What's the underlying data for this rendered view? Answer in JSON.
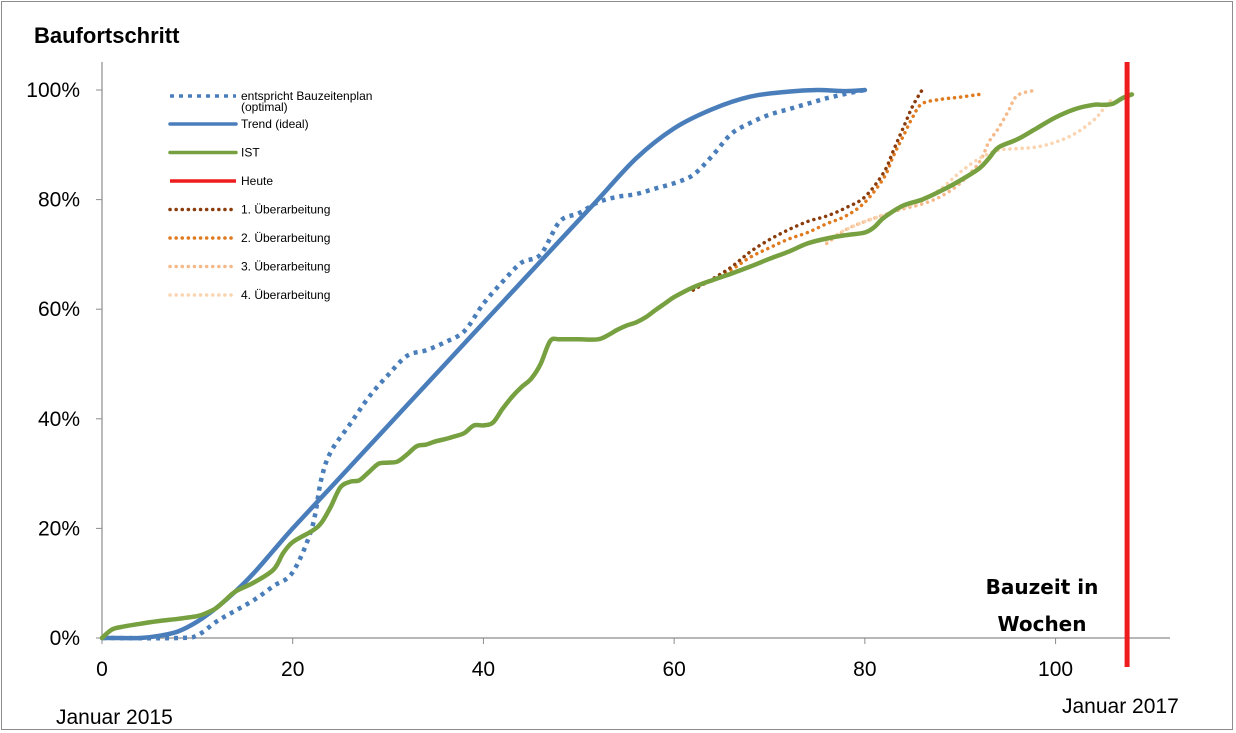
{
  "chart_data": {
    "type": "line",
    "title": "Baufortschritt",
    "xlabel": [
      "Bauzeit in",
      "Wochen"
    ],
    "ylabel": "",
    "xlim": [
      0,
      112
    ],
    "ylim": [
      0,
      100
    ],
    "x_ticks": [
      {
        "value": 0,
        "label": "0"
      },
      {
        "value": 20,
        "label": "20"
      },
      {
        "value": 40,
        "label": "40"
      },
      {
        "value": 60,
        "label": "60"
      },
      {
        "value": 80,
        "label": "80"
      },
      {
        "value": 100,
        "label": "100"
      }
    ],
    "y_ticks": [
      {
        "value": 0,
        "label": "0%"
      },
      {
        "value": 20,
        "label": "20%"
      },
      {
        "value": 40,
        "label": "40%"
      },
      {
        "value": 60,
        "label": "60%"
      },
      {
        "value": 80,
        "label": "80%"
      },
      {
        "value": 100,
        "label": "100%"
      }
    ],
    "start_note": "Januar 2015",
    "end_note": "Januar 2017",
    "grid": false,
    "legend_position": "top-left",
    "series": [
      {
        "name": "entspricht Bauzeitenplan (optimal)",
        "legend_lines": [
          "entspricht Bauzeitenplan",
          "(optimal)"
        ],
        "color": "#4a7ebb",
        "style": "dotted-blue",
        "points": [
          [
            0,
            0
          ],
          [
            8,
            0
          ],
          [
            10,
            0.5
          ],
          [
            12,
            3
          ],
          [
            14,
            5
          ],
          [
            16,
            7
          ],
          [
            18,
            9.5
          ],
          [
            20,
            12
          ],
          [
            22,
            20
          ],
          [
            23,
            29
          ],
          [
            24,
            34
          ],
          [
            26,
            39
          ],
          [
            28,
            44
          ],
          [
            30,
            48
          ],
          [
            32,
            51.5
          ],
          [
            34,
            52.5
          ],
          [
            36,
            54
          ],
          [
            38,
            56
          ],
          [
            40,
            61
          ],
          [
            42,
            65
          ],
          [
            44,
            68.5
          ],
          [
            46,
            70
          ],
          [
            48,
            76
          ],
          [
            50,
            77.5
          ],
          [
            52,
            79.5
          ],
          [
            54,
            80.5
          ],
          [
            56,
            81
          ],
          [
            58,
            82
          ],
          [
            60,
            83
          ],
          [
            62,
            84.5
          ],
          [
            64,
            88
          ],
          [
            66,
            92
          ],
          [
            68,
            94
          ],
          [
            70,
            95.5
          ],
          [
            72,
            96.5
          ],
          [
            74,
            97.5
          ],
          [
            76,
            98.5
          ],
          [
            78,
            99.3
          ],
          [
            80,
            100
          ]
        ]
      },
      {
        "name": "Trend (ideal)",
        "legend_lines": [
          "Trend (ideal)"
        ],
        "color": "#4a7ebb",
        "style": "solid-blue",
        "points": [
          [
            0,
            0
          ],
          [
            2,
            0
          ],
          [
            4,
            0
          ],
          [
            6,
            0.4
          ],
          [
            8,
            1.2
          ],
          [
            10,
            3
          ],
          [
            12,
            5.5
          ],
          [
            14,
            8.5
          ],
          [
            16,
            12
          ],
          [
            18,
            16
          ],
          [
            20,
            20
          ],
          [
            24,
            27.5
          ],
          [
            28,
            35
          ],
          [
            32,
            42.5
          ],
          [
            36,
            50
          ],
          [
            40,
            57.5
          ],
          [
            44,
            65
          ],
          [
            48,
            72.5
          ],
          [
            52,
            80
          ],
          [
            56,
            87.5
          ],
          [
            60,
            93
          ],
          [
            64,
            96.5
          ],
          [
            68,
            98.8
          ],
          [
            72,
            99.7
          ],
          [
            75,
            100
          ],
          [
            78,
            99.8
          ],
          [
            80,
            100
          ]
        ]
      },
      {
        "name": "IST",
        "legend_lines": [
          "IST"
        ],
        "color": "#77a041",
        "style": "solid-green",
        "points": [
          [
            0,
            0
          ],
          [
            1,
            1.5
          ],
          [
            2,
            2
          ],
          [
            4,
            2.6
          ],
          [
            6,
            3.1
          ],
          [
            8,
            3.5
          ],
          [
            10,
            4
          ],
          [
            11,
            4.6
          ],
          [
            12,
            5.5
          ],
          [
            13,
            7
          ],
          [
            14,
            8.5
          ],
          [
            16,
            10.2
          ],
          [
            18,
            12.5
          ],
          [
            19,
            15.5
          ],
          [
            20,
            17.5
          ],
          [
            22,
            19.5
          ],
          [
            23,
            21
          ],
          [
            24,
            24
          ],
          [
            25,
            27.5
          ],
          [
            26,
            28.5
          ],
          [
            27,
            28.8
          ],
          [
            28,
            30.3
          ],
          [
            29,
            31.8
          ],
          [
            30,
            32
          ],
          [
            31,
            32.2
          ],
          [
            32,
            33.5
          ],
          [
            33,
            35
          ],
          [
            34,
            35.3
          ],
          [
            35,
            35.9
          ],
          [
            36,
            36.3
          ],
          [
            37,
            36.8
          ],
          [
            38,
            37.4
          ],
          [
            39,
            38.8
          ],
          [
            40,
            38.8
          ],
          [
            41,
            39.3
          ],
          [
            42,
            41.8
          ],
          [
            43,
            44
          ],
          [
            44,
            45.8
          ],
          [
            45,
            47.3
          ],
          [
            46,
            50
          ],
          [
            47,
            54.2
          ],
          [
            48,
            54.5
          ],
          [
            50,
            54.5
          ],
          [
            52,
            54.5
          ],
          [
            53,
            55.2
          ],
          [
            54,
            56.2
          ],
          [
            55,
            57
          ],
          [
            56,
            57.6
          ],
          [
            57,
            58.5
          ],
          [
            58,
            59.8
          ],
          [
            59,
            61
          ],
          [
            60,
            62.2
          ],
          [
            62,
            64
          ],
          [
            64,
            65.3
          ],
          [
            66,
            66.5
          ],
          [
            68,
            67.8
          ],
          [
            70,
            69.2
          ],
          [
            72,
            70.5
          ],
          [
            74,
            72
          ],
          [
            76,
            72.9
          ],
          [
            78,
            73.5
          ],
          [
            80,
            74
          ],
          [
            81,
            75
          ],
          [
            82,
            76.7
          ],
          [
            84,
            78.9
          ],
          [
            86,
            80
          ],
          [
            88,
            81.6
          ],
          [
            90,
            83.5
          ],
          [
            92,
            85.7
          ],
          [
            93,
            87.5
          ],
          [
            94,
            89.5
          ],
          [
            96,
            91
          ],
          [
            98,
            93
          ],
          [
            100,
            95
          ],
          [
            102,
            96.5
          ],
          [
            104,
            97.3
          ],
          [
            105,
            97.3
          ],
          [
            106,
            97.5
          ],
          [
            107,
            98.5
          ],
          [
            108,
            99.2
          ]
        ]
      },
      {
        "name": "Heute",
        "legend_lines": [
          "Heute"
        ],
        "color": "#ee1c1c",
        "style": "vertical-red",
        "x": 107.5
      },
      {
        "name": "1. Überarbeitung",
        "legend_lines": [
          "1. Überarbeitung"
        ],
        "color": "#8b3c0c",
        "style": "dotted-darkbrown",
        "points": [
          [
            62,
            63.5
          ],
          [
            64,
            65.5
          ],
          [
            66,
            67.7
          ],
          [
            68,
            70.5
          ],
          [
            70,
            72.7
          ],
          [
            72,
            74.5
          ],
          [
            74,
            76
          ],
          [
            76,
            77
          ],
          [
            78,
            78.5
          ],
          [
            80,
            80.5
          ],
          [
            82,
            85
          ],
          [
            83,
            89
          ],
          [
            84,
            93
          ],
          [
            85,
            97
          ],
          [
            86,
            100
          ]
        ]
      },
      {
        "name": "2. Überarbeitung",
        "legend_lines": [
          "2. Überarbeitung"
        ],
        "color": "#e07a1e",
        "style": "dotted-orange",
        "points": [
          [
            62,
            63.5
          ],
          [
            64,
            65.5
          ],
          [
            66,
            67.2
          ],
          [
            68,
            69.5
          ],
          [
            70,
            71.2
          ],
          [
            72,
            72.8
          ],
          [
            74,
            74
          ],
          [
            76,
            75.6
          ],
          [
            78,
            77
          ],
          [
            80,
            79.5
          ],
          [
            82,
            84
          ],
          [
            83,
            88
          ],
          [
            84,
            91.5
          ],
          [
            85,
            95
          ],
          [
            86,
            97.5
          ],
          [
            88,
            98.3
          ],
          [
            90,
            98.7
          ],
          [
            92,
            99.2
          ]
        ]
      },
      {
        "name": "3. Überarbeitung",
        "legend_lines": [
          "3. Überarbeitung"
        ],
        "color": "#f5b98a",
        "style": "dotted-lightorange",
        "points": [
          [
            76,
            72
          ],
          [
            78,
            74.5
          ],
          [
            80,
            76
          ],
          [
            82,
            77.2
          ],
          [
            84,
            78.3
          ],
          [
            86,
            79.2
          ],
          [
            88,
            80.6
          ],
          [
            90,
            83
          ],
          [
            92,
            86.8
          ],
          [
            93,
            90.5
          ],
          [
            94,
            93
          ],
          [
            95,
            96
          ],
          [
            96,
            99
          ],
          [
            98,
            100
          ]
        ]
      },
      {
        "name": "4. Überarbeitung",
        "legend_lines": [
          "4. Überarbeitung"
        ],
        "color": "#fad4b0",
        "style": "dotted-peach",
        "points": [
          [
            76,
            72.5
          ],
          [
            78,
            74.5
          ],
          [
            80,
            76
          ],
          [
            82,
            77.2
          ],
          [
            84,
            78.5
          ],
          [
            86,
            79.8
          ],
          [
            88,
            82
          ],
          [
            90,
            85
          ],
          [
            92,
            87.5
          ],
          [
            94,
            89
          ],
          [
            96,
            89.3
          ],
          [
            98,
            89.6
          ],
          [
            100,
            90.5
          ],
          [
            102,
            92
          ],
          [
            104,
            94.5
          ],
          [
            105,
            96.5
          ],
          [
            106,
            98.5
          ]
        ]
      }
    ]
  }
}
